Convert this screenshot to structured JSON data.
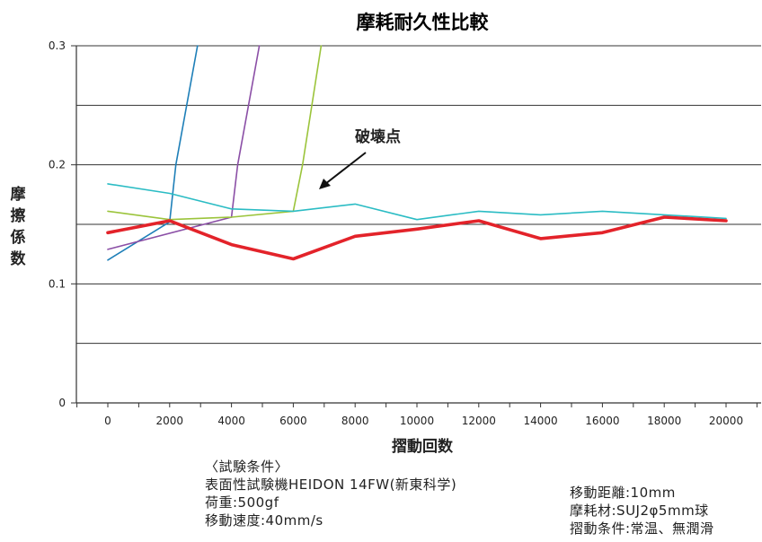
{
  "chart_data": {
    "type": "line",
    "title": "摩耗耐久性比較",
    "xlabel": "摺動回数",
    "ylabel": "摩擦係数",
    "xlim": [
      -1000,
      21000
    ],
    "ylim": [
      0,
      0.3
    ],
    "x_ticks": [
      0,
      2000,
      4000,
      6000,
      8000,
      10000,
      12000,
      14000,
      16000,
      18000,
      20000
    ],
    "x_tick_labels": [
      "0",
      "2000",
      "4000",
      "6000",
      "8000",
      "10000",
      "12000",
      "14000",
      "16000",
      "18000",
      "20000"
    ],
    "y_ticks": [
      0,
      0.1,
      0.2,
      0.3
    ],
    "y_tick_labels": [
      "0",
      "0.1",
      "0.2",
      "0.3"
    ],
    "gridlines_y": [
      0.05,
      0.1,
      0.15,
      0.2,
      0.25,
      0.3
    ],
    "grid": true,
    "annotation": "破壊点",
    "series": [
      {
        "color": "#1e7fb8",
        "width": 1.6,
        "x": [
          0,
          2000,
          2200,
          2900
        ],
        "y": [
          0.12,
          0.152,
          0.2,
          0.3
        ]
      },
      {
        "color": "#8b4fa6",
        "width": 1.6,
        "x": [
          0,
          4000,
          4200,
          4900
        ],
        "y": [
          0.129,
          0.156,
          0.2,
          0.3
        ]
      },
      {
        "color": "#9bc43b",
        "width": 1.6,
        "x": [
          0,
          2000,
          4000,
          6000,
          6300,
          6900
        ],
        "y": [
          0.161,
          0.154,
          0.156,
          0.161,
          0.2,
          0.3
        ]
      },
      {
        "color": "#2bbcc4",
        "width": 1.6,
        "x": [
          0,
          2000,
          4000,
          6000,
          8000,
          10000,
          12000,
          14000,
          16000,
          18000,
          20000
        ],
        "y": [
          0.184,
          0.176,
          0.163,
          0.161,
          0.167,
          0.154,
          0.161,
          0.158,
          0.161,
          0.158,
          0.155
        ]
      },
      {
        "color": "#e3232a",
        "width": 3.6,
        "x": [
          0,
          2000,
          4000,
          6000,
          8000,
          10000,
          12000,
          14000,
          16000,
          18000,
          20000
        ],
        "y": [
          0.143,
          0.153,
          0.133,
          0.121,
          0.14,
          0.146,
          0.153,
          0.138,
          0.143,
          0.156,
          0.153
        ]
      }
    ]
  },
  "conditions": {
    "heading": "〈試験条件〉",
    "left_lines": [
      "表面性試験機HEIDON 14FW(新東科学)",
      "荷重:500gf",
      "移動速度:40mm/s"
    ],
    "right_lines": [
      "移動距離:10mm",
      "摩耗材:SUJ2φ5mm球",
      "摺動条件:常温、無潤滑"
    ]
  }
}
